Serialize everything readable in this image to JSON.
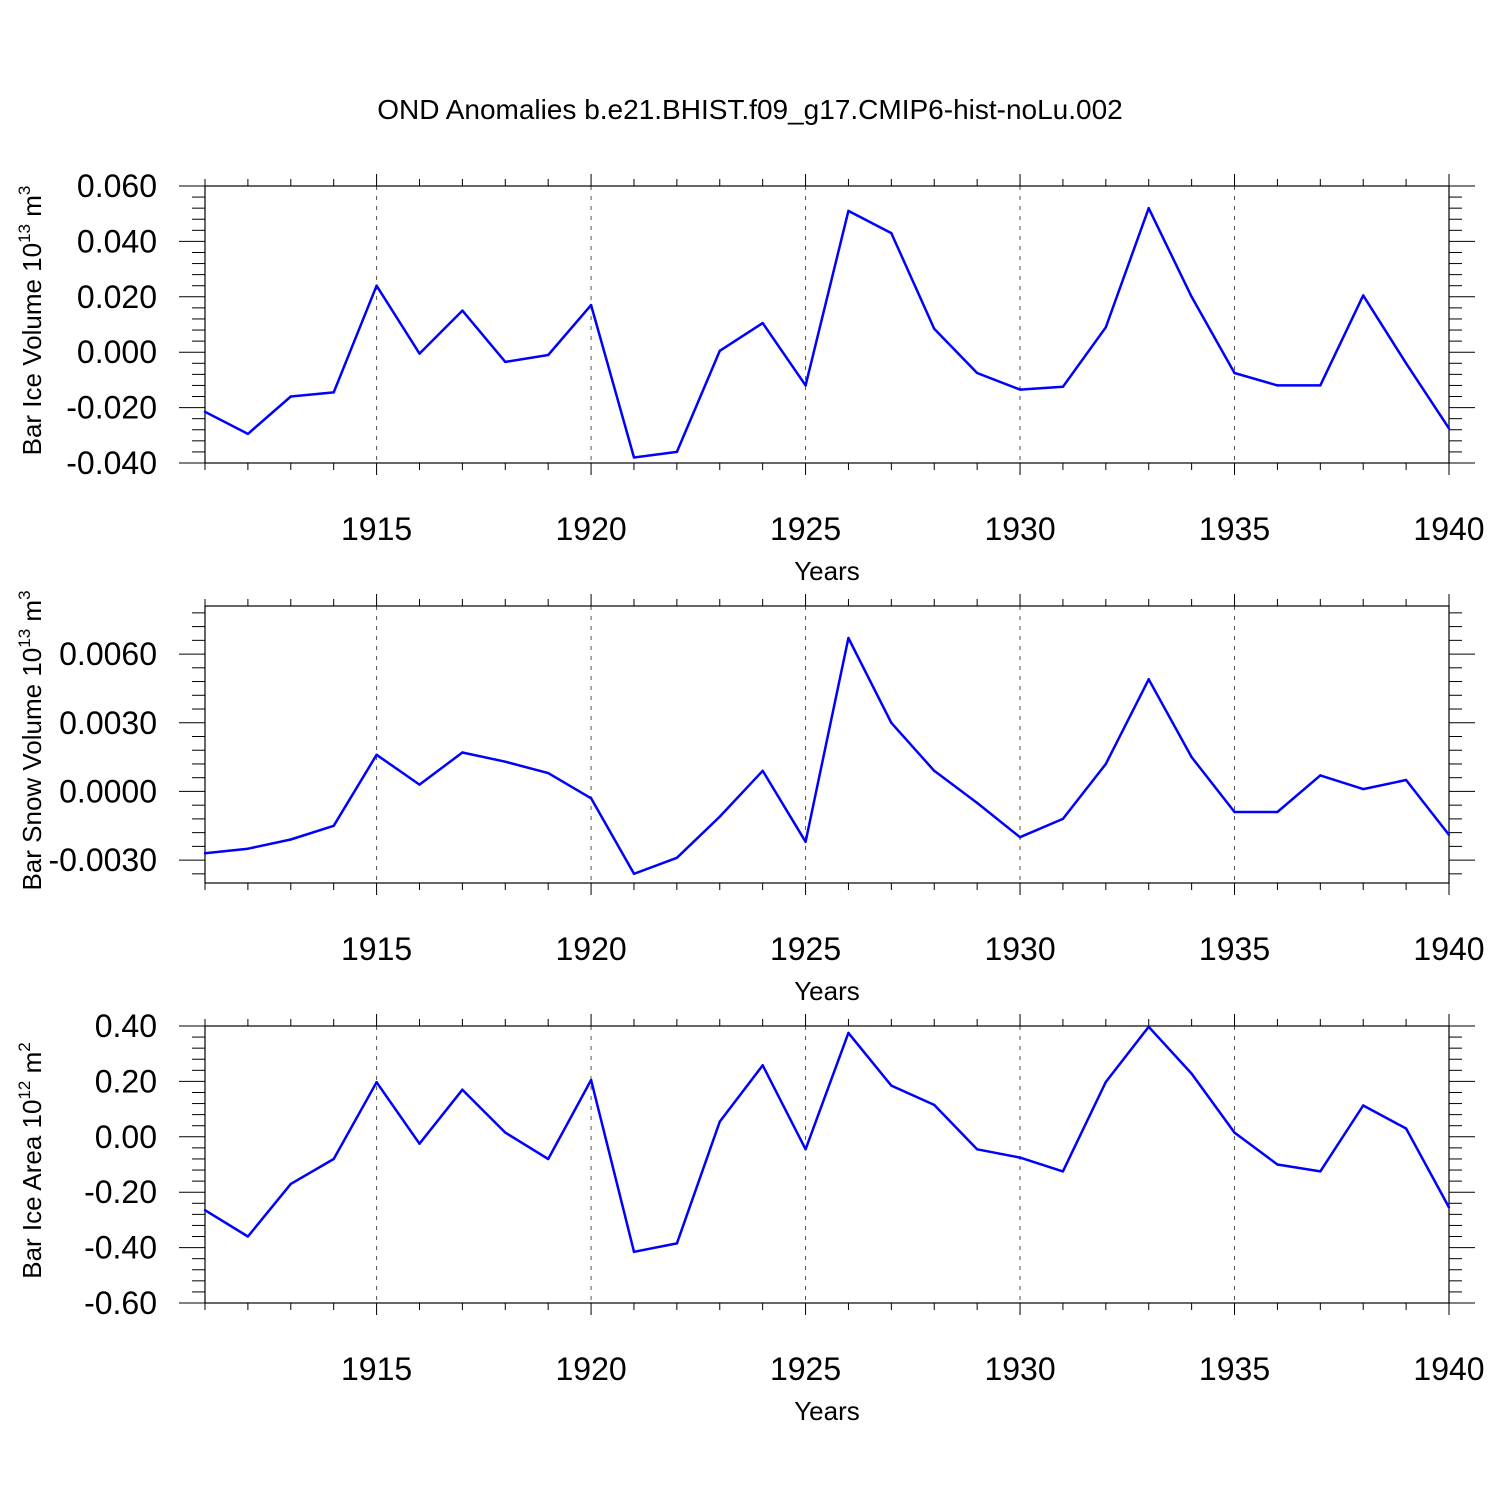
{
  "title": "OND Anomalies b.e21.BHIST.f09_g17.CMIP6-hist-noLu.002",
  "colors": {
    "line": "#0000ff",
    "axis": "#000000",
    "grid": "#555555"
  },
  "chart_data": [
    {
      "type": "line",
      "ylabel": "Bar Ice Volume 10",
      "ylabel_exp": "13",
      "ylabel_unit": " m",
      "ylabel_unit_exp": "3",
      "xlabel": "Years",
      "xlim": [
        1911,
        1940
      ],
      "ylim": [
        -0.04,
        0.06
      ],
      "yticks": [
        -0.04,
        -0.02,
        0.0,
        0.02,
        0.04,
        0.06
      ],
      "ytick_labels": [
        "-0.040",
        "-0.020",
        "0.000",
        "0.020",
        "0.040",
        "0.060"
      ],
      "xticks": [
        1915,
        1920,
        1925,
        1930,
        1935,
        1940
      ],
      "xtick_labels": [
        "1915",
        "1920",
        "1925",
        "1930",
        "1935",
        "1940"
      ],
      "grid": "vertical-dashed-at-major-x",
      "series": [
        {
          "name": "ice-volume",
          "x": [
            1911,
            1912,
            1913,
            1914,
            1915,
            1916,
            1917,
            1918,
            1919,
            1920,
            1921,
            1922,
            1923,
            1924,
            1925,
            1926,
            1927,
            1928,
            1929,
            1930,
            1931,
            1932,
            1933,
            1934,
            1935,
            1936,
            1937,
            1938,
            1939,
            1940
          ],
          "values": [
            -0.0215,
            -0.0295,
            -0.016,
            -0.0145,
            0.024,
            -0.0005,
            0.015,
            -0.0035,
            -0.001,
            0.017,
            -0.038,
            -0.036,
            0.0005,
            0.0105,
            -0.012,
            0.051,
            0.043,
            0.0085,
            -0.0075,
            -0.0135,
            -0.0125,
            0.009,
            0.052,
            0.02,
            -0.0075,
            -0.012,
            -0.012,
            0.0205,
            -0.004,
            -0.0275
          ]
        }
      ]
    },
    {
      "type": "line",
      "ylabel": "Bar Snow Volume 10",
      "ylabel_exp": "13",
      "ylabel_unit": " m",
      "ylabel_unit_exp": "3",
      "xlabel": "Years",
      "xlim": [
        1911,
        1940
      ],
      "ylim": [
        -0.004,
        0.0081
      ],
      "yticks": [
        -0.003,
        0.0,
        0.003,
        0.006
      ],
      "ytick_labels": [
        "-0.0030",
        "0.0000",
        "0.0030",
        "0.0060"
      ],
      "xticks": [
        1915,
        1920,
        1925,
        1930,
        1935,
        1940
      ],
      "xtick_labels": [
        "1915",
        "1920",
        "1925",
        "1930",
        "1935",
        "1940"
      ],
      "grid": "vertical-dashed-at-major-x",
      "series": [
        {
          "name": "snow-volume",
          "x": [
            1911,
            1912,
            1913,
            1914,
            1915,
            1916,
            1917,
            1918,
            1919,
            1920,
            1921,
            1922,
            1923,
            1924,
            1925,
            1926,
            1927,
            1928,
            1929,
            1930,
            1931,
            1932,
            1933,
            1934,
            1935,
            1936,
            1937,
            1938,
            1939,
            1940
          ],
          "values": [
            -0.0027,
            -0.0025,
            -0.0021,
            -0.0015,
            0.0016,
            0.0003,
            0.0017,
            0.0013,
            0.0008,
            -0.0003,
            -0.0036,
            -0.0029,
            -0.0011,
            0.0009,
            -0.0022,
            0.0067,
            0.003,
            0.0009,
            -0.0005,
            -0.002,
            -0.0012,
            0.0012,
            0.0049,
            0.0015,
            -0.0009,
            -0.0009,
            0.0007,
            0.0001,
            0.0005,
            -0.0019
          ]
        }
      ]
    },
    {
      "type": "line",
      "ylabel": "Bar Ice Area 10",
      "ylabel_exp": "12",
      "ylabel_unit": " m",
      "ylabel_unit_exp": "2",
      "xlabel": "Years",
      "xlim": [
        1911,
        1940
      ],
      "ylim": [
        -0.6,
        0.4
      ],
      "yticks": [
        -0.6,
        -0.4,
        -0.2,
        0.0,
        0.2,
        0.4
      ],
      "ytick_labels": [
        "-0.60",
        "-0.40",
        "-0.20",
        "0.00",
        "0.20",
        "0.40"
      ],
      "xticks": [
        1915,
        1920,
        1925,
        1930,
        1935,
        1940
      ],
      "xtick_labels": [
        "1915",
        "1920",
        "1925",
        "1930",
        "1935",
        "1940"
      ],
      "grid": "vertical-dashed-at-major-x",
      "series": [
        {
          "name": "ice-area",
          "x": [
            1911,
            1912,
            1913,
            1914,
            1915,
            1916,
            1917,
            1918,
            1919,
            1920,
            1921,
            1922,
            1923,
            1924,
            1925,
            1926,
            1927,
            1928,
            1929,
            1930,
            1931,
            1932,
            1933,
            1934,
            1935,
            1936,
            1937,
            1938,
            1939,
            1940
          ],
          "values": [
            -0.265,
            -0.36,
            -0.17,
            -0.08,
            0.197,
            -0.025,
            0.17,
            0.015,
            -0.08,
            0.205,
            -0.415,
            -0.385,
            0.055,
            0.258,
            -0.045,
            0.375,
            0.185,
            0.115,
            -0.045,
            -0.075,
            -0.125,
            0.198,
            0.397,
            0.228,
            0.015,
            -0.1,
            -0.125,
            0.113,
            0.03,
            -0.255
          ]
        }
      ]
    }
  ]
}
